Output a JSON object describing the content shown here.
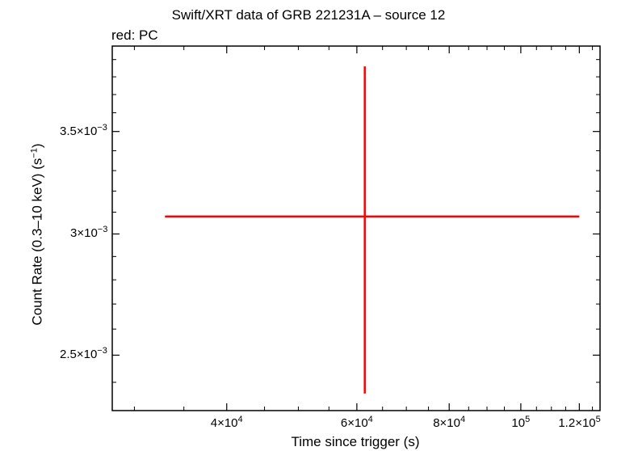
{
  "chart_data": {
    "type": "scatter",
    "title": "Swift/XRT data of GRB 221231A – source 12",
    "subtitle": "red: PC",
    "xlabel": "Time since trigger (s)",
    "ylabel": {
      "text": "Count Rate (0.3–10 keV) (s",
      "sup": "−1",
      "close": ")"
    },
    "x_scale": "log",
    "y_scale": "log",
    "xlim": [
      28000,
      128000
    ],
    "ylim": [
      0.0023,
      0.00398
    ],
    "x_ticks": [
      {
        "value": 40000,
        "label": "4×10",
        "sup": "4"
      },
      {
        "value": 60000,
        "label": "6×10",
        "sup": "4"
      },
      {
        "value": 80000,
        "label": "8×10",
        "sup": "4"
      },
      {
        "value": 100000,
        "label": "10",
        "sup": "5"
      },
      {
        "value": 120000,
        "label": "1.2×10",
        "sup": "5"
      }
    ],
    "y_ticks": [
      {
        "value": 0.0025,
        "label": "2.5×10",
        "sup": "−3"
      },
      {
        "value": 0.003,
        "label": "3×10",
        "sup": "−3"
      },
      {
        "value": 0.0035,
        "label": "3.5×10",
        "sup": "−3"
      }
    ],
    "series": [
      {
        "color": "#ff0000",
        "points": [
          {
            "x": 61500,
            "y": 0.00308,
            "x_err": [
              33000,
              120000
            ],
            "y_err": [
              0.00236,
              0.00386
            ]
          }
        ]
      }
    ],
    "grid": false,
    "legend": "none"
  }
}
